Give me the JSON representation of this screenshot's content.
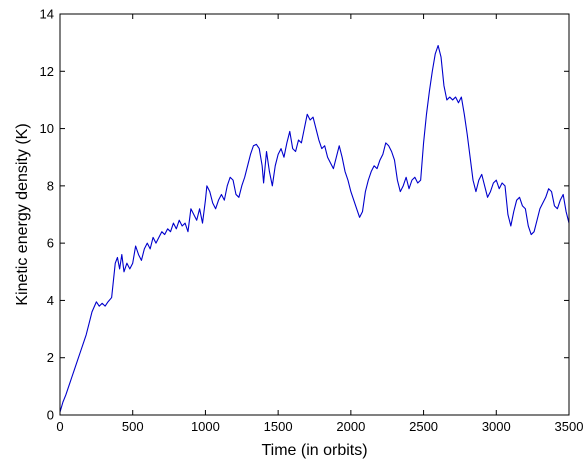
{
  "chart_data": {
    "type": "line",
    "xlabel": "Time (in orbits)",
    "ylabel": "Kinetic energy density (K)",
    "xlim": [
      0,
      3500
    ],
    "ylim": [
      0,
      14
    ],
    "xticks": [
      0,
      500,
      1000,
      1500,
      2000,
      2500,
      3000,
      3500
    ],
    "yticks": [
      0,
      2,
      4,
      6,
      8,
      10,
      12,
      14
    ],
    "grid": false,
    "legend": "none",
    "series": [
      {
        "color": "#0000cc",
        "points": [
          [
            0,
            0.1
          ],
          [
            20,
            0.45
          ],
          [
            40,
            0.7
          ],
          [
            60,
            1.0
          ],
          [
            80,
            1.3
          ],
          [
            100,
            1.6
          ],
          [
            120,
            1.9
          ],
          [
            140,
            2.2
          ],
          [
            160,
            2.5
          ],
          [
            180,
            2.8
          ],
          [
            200,
            3.2
          ],
          [
            220,
            3.6
          ],
          [
            250,
            3.95
          ],
          [
            270,
            3.8
          ],
          [
            290,
            3.9
          ],
          [
            310,
            3.8
          ],
          [
            330,
            3.95
          ],
          [
            355,
            4.1
          ],
          [
            380,
            5.3
          ],
          [
            395,
            5.5
          ],
          [
            410,
            5.1
          ],
          [
            425,
            5.6
          ],
          [
            440,
            5.0
          ],
          [
            460,
            5.3
          ],
          [
            480,
            5.1
          ],
          [
            500,
            5.3
          ],
          [
            520,
            5.9
          ],
          [
            540,
            5.6
          ],
          [
            560,
            5.4
          ],
          [
            580,
            5.8
          ],
          [
            600,
            6.0
          ],
          [
            620,
            5.8
          ],
          [
            640,
            6.2
          ],
          [
            660,
            6.0
          ],
          [
            680,
            6.2
          ],
          [
            700,
            6.4
          ],
          [
            720,
            6.3
          ],
          [
            740,
            6.5
          ],
          [
            760,
            6.4
          ],
          [
            780,
            6.7
          ],
          [
            800,
            6.5
          ],
          [
            820,
            6.8
          ],
          [
            840,
            6.6
          ],
          [
            860,
            6.7
          ],
          [
            880,
            6.4
          ],
          [
            900,
            7.2
          ],
          [
            920,
            7.0
          ],
          [
            940,
            6.8
          ],
          [
            960,
            7.2
          ],
          [
            980,
            6.7
          ],
          [
            1000,
            7.5
          ],
          [
            1010,
            8.0
          ],
          [
            1030,
            7.8
          ],
          [
            1050,
            7.4
          ],
          [
            1070,
            7.2
          ],
          [
            1090,
            7.5
          ],
          [
            1110,
            7.7
          ],
          [
            1130,
            7.5
          ],
          [
            1150,
            8.0
          ],
          [
            1170,
            8.3
          ],
          [
            1190,
            8.2
          ],
          [
            1210,
            7.7
          ],
          [
            1230,
            7.6
          ],
          [
            1250,
            8.0
          ],
          [
            1270,
            8.3
          ],
          [
            1290,
            8.7
          ],
          [
            1310,
            9.1
          ],
          [
            1330,
            9.4
          ],
          [
            1350,
            9.45
          ],
          [
            1370,
            9.3
          ],
          [
            1390,
            8.7
          ],
          [
            1400,
            8.1
          ],
          [
            1420,
            9.2
          ],
          [
            1440,
            8.5
          ],
          [
            1460,
            8.0
          ],
          [
            1480,
            8.7
          ],
          [
            1500,
            9.1
          ],
          [
            1520,
            9.3
          ],
          [
            1540,
            9.0
          ],
          [
            1560,
            9.5
          ],
          [
            1580,
            9.9
          ],
          [
            1600,
            9.3
          ],
          [
            1620,
            9.2
          ],
          [
            1640,
            9.6
          ],
          [
            1660,
            9.5
          ],
          [
            1680,
            10.0
          ],
          [
            1700,
            10.5
          ],
          [
            1720,
            10.3
          ],
          [
            1740,
            10.4
          ],
          [
            1760,
            10.0
          ],
          [
            1780,
            9.6
          ],
          [
            1800,
            9.3
          ],
          [
            1820,
            9.4
          ],
          [
            1840,
            9.0
          ],
          [
            1860,
            8.8
          ],
          [
            1880,
            8.6
          ],
          [
            1900,
            9.0
          ],
          [
            1920,
            9.4
          ],
          [
            1940,
            9.0
          ],
          [
            1960,
            8.5
          ],
          [
            1980,
            8.2
          ],
          [
            2000,
            7.8
          ],
          [
            2020,
            7.5
          ],
          [
            2040,
            7.2
          ],
          [
            2060,
            6.9
          ],
          [
            2080,
            7.1
          ],
          [
            2100,
            7.8
          ],
          [
            2120,
            8.2
          ],
          [
            2140,
            8.5
          ],
          [
            2160,
            8.7
          ],
          [
            2180,
            8.6
          ],
          [
            2200,
            8.9
          ],
          [
            2220,
            9.1
          ],
          [
            2240,
            9.5
          ],
          [
            2260,
            9.4
          ],
          [
            2280,
            9.2
          ],
          [
            2300,
            8.9
          ],
          [
            2320,
            8.2
          ],
          [
            2340,
            7.8
          ],
          [
            2360,
            8.0
          ],
          [
            2380,
            8.3
          ],
          [
            2400,
            7.9
          ],
          [
            2420,
            8.2
          ],
          [
            2440,
            8.3
          ],
          [
            2460,
            8.1
          ],
          [
            2480,
            8.2
          ],
          [
            2500,
            9.5
          ],
          [
            2520,
            10.5
          ],
          [
            2540,
            11.3
          ],
          [
            2560,
            12.0
          ],
          [
            2580,
            12.6
          ],
          [
            2600,
            12.9
          ],
          [
            2620,
            12.5
          ],
          [
            2640,
            11.5
          ],
          [
            2660,
            11.0
          ],
          [
            2680,
            11.1
          ],
          [
            2700,
            11.0
          ],
          [
            2720,
            11.1
          ],
          [
            2740,
            10.9
          ],
          [
            2760,
            11.1
          ],
          [
            2780,
            10.5
          ],
          [
            2800,
            9.8
          ],
          [
            2820,
            9.0
          ],
          [
            2840,
            8.2
          ],
          [
            2860,
            7.8
          ],
          [
            2880,
            8.2
          ],
          [
            2900,
            8.4
          ],
          [
            2920,
            8.0
          ],
          [
            2940,
            7.6
          ],
          [
            2960,
            7.8
          ],
          [
            2980,
            8.1
          ],
          [
            3000,
            8.2
          ],
          [
            3020,
            7.9
          ],
          [
            3040,
            8.1
          ],
          [
            3060,
            8.0
          ],
          [
            3080,
            7.0
          ],
          [
            3100,
            6.6
          ],
          [
            3120,
            7.1
          ],
          [
            3140,
            7.5
          ],
          [
            3160,
            7.6
          ],
          [
            3180,
            7.3
          ],
          [
            3200,
            7.2
          ],
          [
            3220,
            6.6
          ],
          [
            3240,
            6.3
          ],
          [
            3260,
            6.4
          ],
          [
            3280,
            6.8
          ],
          [
            3300,
            7.2
          ],
          [
            3320,
            7.4
          ],
          [
            3340,
            7.6
          ],
          [
            3360,
            7.9
          ],
          [
            3380,
            7.8
          ],
          [
            3400,
            7.3
          ],
          [
            3420,
            7.2
          ],
          [
            3440,
            7.5
          ],
          [
            3460,
            7.7
          ],
          [
            3480,
            7.1
          ],
          [
            3500,
            6.7
          ]
        ]
      }
    ]
  }
}
